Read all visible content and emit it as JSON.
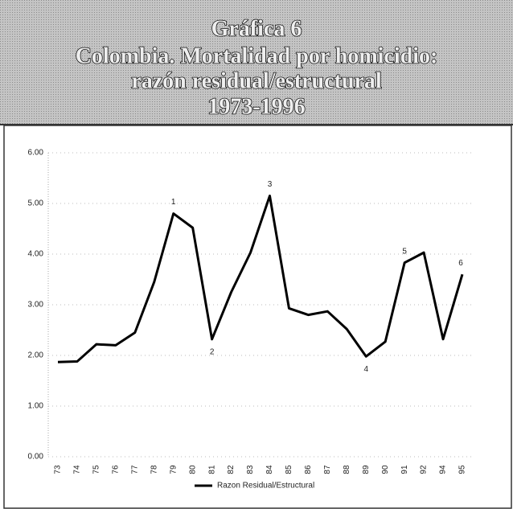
{
  "chart_data": {
    "type": "line",
    "title": [
      "Gráfica 6",
      "Colombia. Mortalidad por homicidio:",
      "razón residual/estructural",
      "1973-1996"
    ],
    "categories": [
      "73",
      "74",
      "75",
      "76",
      "77",
      "78",
      "79",
      "80",
      "81",
      "82",
      "83",
      "84",
      "85",
      "86",
      "87",
      "88",
      "89",
      "90",
      "91",
      "92",
      "94",
      "95"
    ],
    "series": [
      {
        "name": "Razon Residual/Estructural",
        "color": "#000000",
        "values": [
          1.87,
          1.88,
          2.22,
          2.2,
          2.45,
          3.45,
          4.8,
          4.52,
          2.32,
          3.25,
          4.03,
          5.15,
          2.93,
          2.8,
          2.87,
          2.52,
          1.98,
          2.27,
          3.83,
          4.03,
          2.32,
          3.6
        ]
      }
    ],
    "annotations": [
      {
        "text": "1",
        "at": "79"
      },
      {
        "text": "2",
        "at": "81"
      },
      {
        "text": "3",
        "at": "84"
      },
      {
        "text": "4",
        "at": "89"
      },
      {
        "text": "5",
        "at": "91"
      },
      {
        "text": "6",
        "at": "95"
      }
    ],
    "ylim": [
      0,
      6
    ],
    "yticks": [
      {
        "value": 0,
        "label": "0.00"
      },
      {
        "value": 1,
        "label": "1.00"
      },
      {
        "value": 2,
        "label": "2.00"
      },
      {
        "value": 3,
        "label": "3.00"
      },
      {
        "value": 4,
        "label": "4.00"
      },
      {
        "value": 5,
        "label": "5.00"
      },
      {
        "value": 6,
        "label": "6.00"
      }
    ],
    "grid": true,
    "legend": "bottom"
  }
}
